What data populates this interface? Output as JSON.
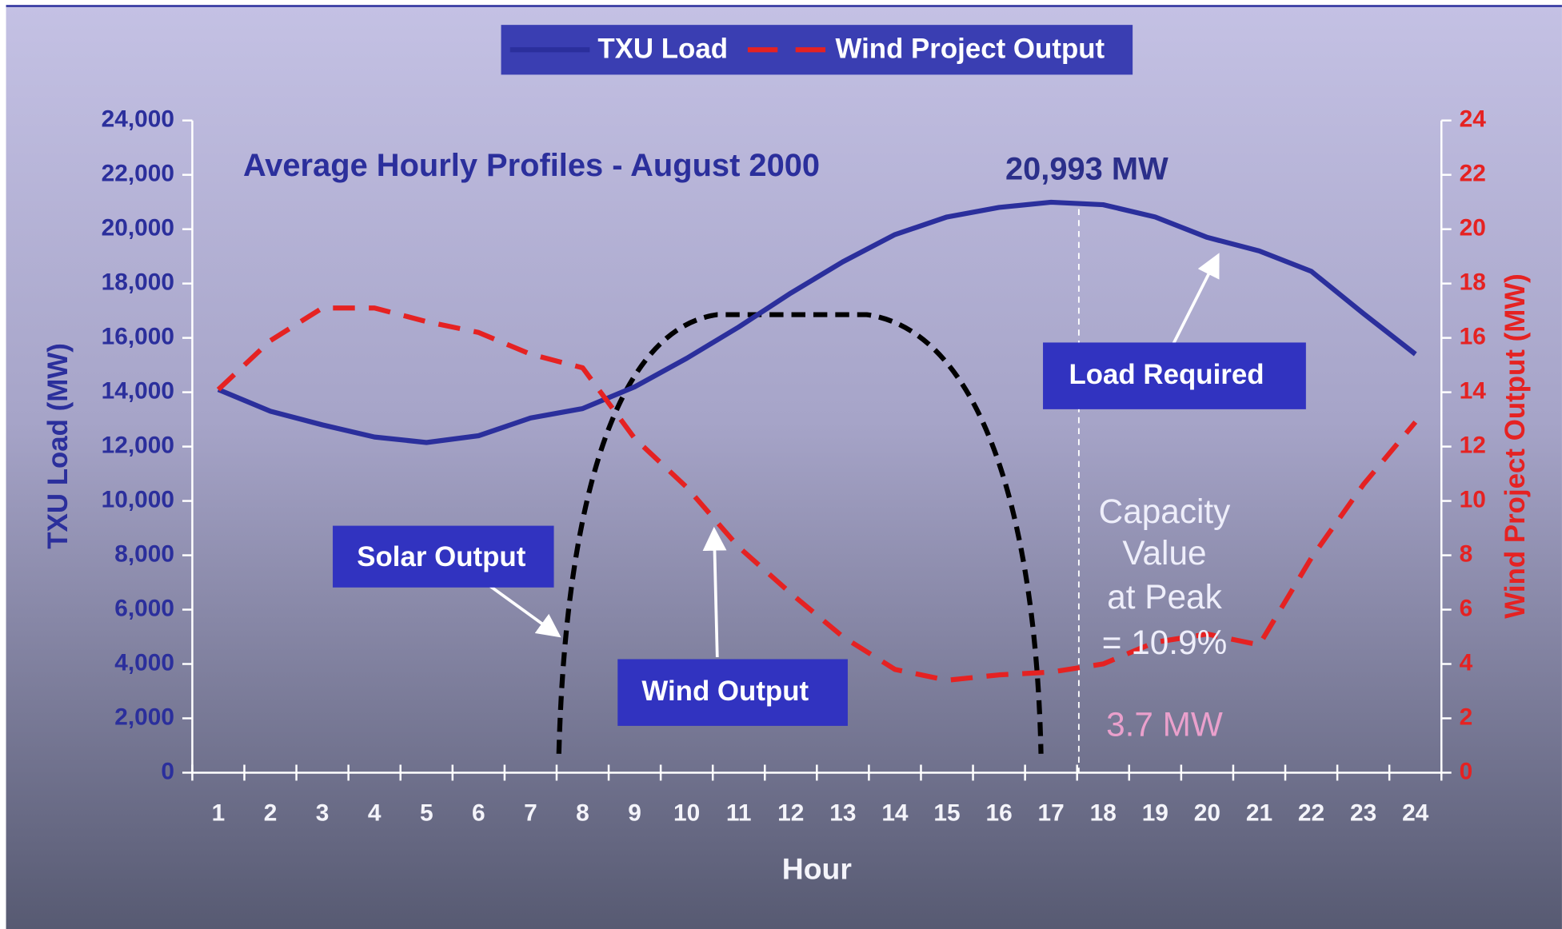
{
  "chart_data": {
    "type": "line",
    "title": "Average Hourly Profiles - August 2000",
    "categories": [
      "1",
      "2",
      "3",
      "4",
      "5",
      "6",
      "7",
      "8",
      "9",
      "10",
      "11",
      "12",
      "13",
      "14",
      "15",
      "16",
      "17",
      "18",
      "19",
      "20",
      "21",
      "22",
      "23",
      "24"
    ],
    "x_label": "Hour",
    "y_label": "TXU Load (MW)",
    "y2_label": "Wind Project Output (MW)",
    "legend": "top",
    "series": [
      {
        "name": "TXU Load",
        "color": "#2b2f9c",
        "values": [
          14100,
          13300,
          12800,
          12350,
          12150,
          12400,
          13050,
          13400,
          14200,
          15250,
          16400,
          17650,
          18800,
          19800,
          20450,
          20800,
          20993,
          20900,
          20450,
          19700,
          19200,
          18450,
          16900,
          15400
        ]
      },
      {
        "name": "Wind Project Output",
        "color": "#e52222",
        "axis": "y2",
        "values": [
          14.1,
          15.9,
          17.1,
          17.1,
          16.6,
          16.2,
          15.4,
          14.9,
          12.3,
          10.5,
          8.3,
          6.6,
          5.0,
          3.8,
          3.4,
          3.6,
          3.7,
          4.0,
          4.8,
          5.1,
          4.7,
          7.9,
          10.6,
          12.9
        ]
      }
    ],
    "ylim": [
      0,
      24000
    ],
    "yticks": [
      0,
      {
        "value": 2000,
        "label": "2,000"
      },
      {
        "value": 4000,
        "label": "4,000"
      },
      {
        "value": 6000,
        "label": "6,000"
      },
      {
        "value": 8000,
        "label": "8,000"
      },
      {
        "value": 10000,
        "label": "10,000"
      },
      {
        "value": 12000,
        "label": "12,000"
      },
      {
        "value": 14000,
        "label": "14,000"
      },
      {
        "value": 16000,
        "label": "16,000"
      },
      {
        "value": 18000,
        "label": "18,000"
      },
      {
        "value": 20000,
        "label": "20,000"
      },
      {
        "value": 22000,
        "label": "22,000"
      },
      {
        "value": 24000,
        "label": "24,000"
      }
    ],
    "y2lim": [
      0,
      24
    ],
    "y2ticks": [
      0,
      2,
      4,
      6,
      8,
      10,
      12,
      14,
      16,
      18,
      20,
      22,
      24
    ],
    "annotations": [
      "20,993 MW",
      "Load Required",
      "Solar Output",
      "Wind Output",
      "Capacity",
      "Value",
      "at Peak",
      "= 10.9%",
      "3.7 MW"
    ]
  }
}
